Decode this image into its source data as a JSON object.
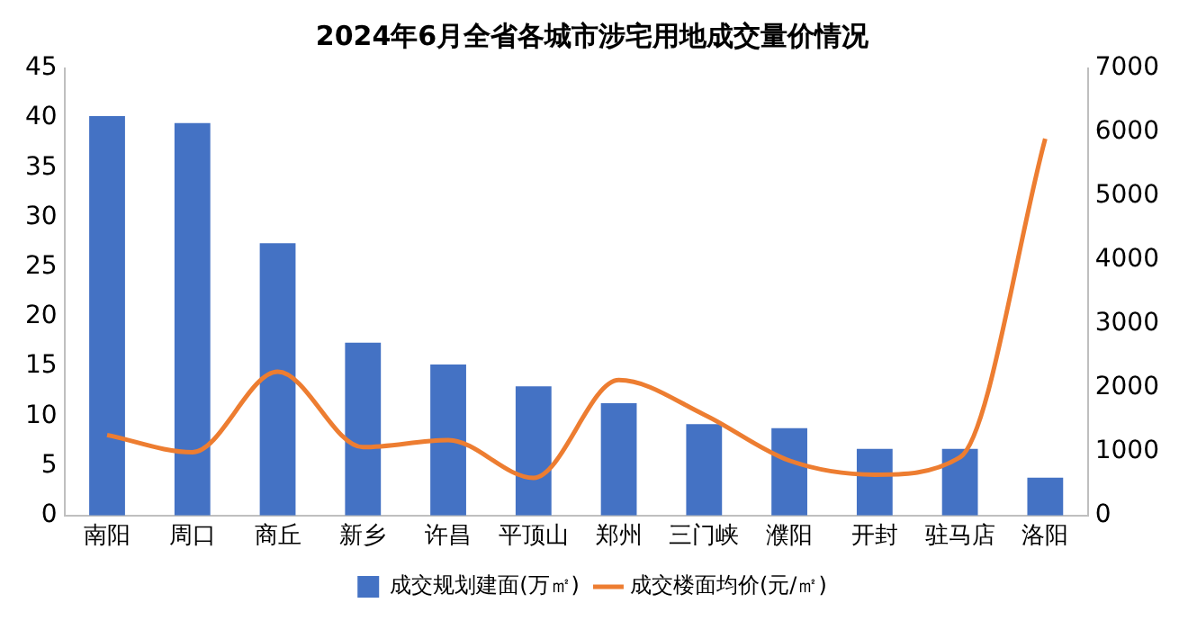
{
  "chart_data": {
    "type": "bar",
    "title": "2024年6月全省各城市涉宅用地成交量价情况",
    "categories": [
      "南阳",
      "周口",
      "商丘",
      "新乡",
      "许昌",
      "平顶山",
      "郑州",
      "三门峡",
      "濮阳",
      "开封",
      "驻马店",
      "洛阳"
    ],
    "series": [
      {
        "name": "成交规划建面(万㎡)",
        "color": "#4472c4",
        "values": [
          40.2,
          39.5,
          27.4,
          17.4,
          15.2,
          13.0,
          11.3,
          9.2,
          8.8,
          6.7,
          6.7,
          3.8
        ]
      },
      {
        "name": "成交楼面均价(元/㎡)",
        "type": "line",
        "axis": "y2",
        "color": "#ed7d31",
        "values": [
          1260,
          990,
          2250,
          1070,
          1180,
          590,
          2120,
          1580,
          860,
          640,
          910,
          5900
        ]
      }
    ],
    "ylim": [
      0,
      45
    ],
    "yticks": [
      0,
      5,
      10,
      15,
      20,
      25,
      30,
      35,
      40,
      45
    ],
    "y2lim": [
      0,
      7000
    ],
    "y2ticks": [
      0,
      1000,
      2000,
      3000,
      4000,
      5000,
      6000,
      7000
    ],
    "grid": false,
    "legend": "bottom",
    "marker": "none"
  }
}
